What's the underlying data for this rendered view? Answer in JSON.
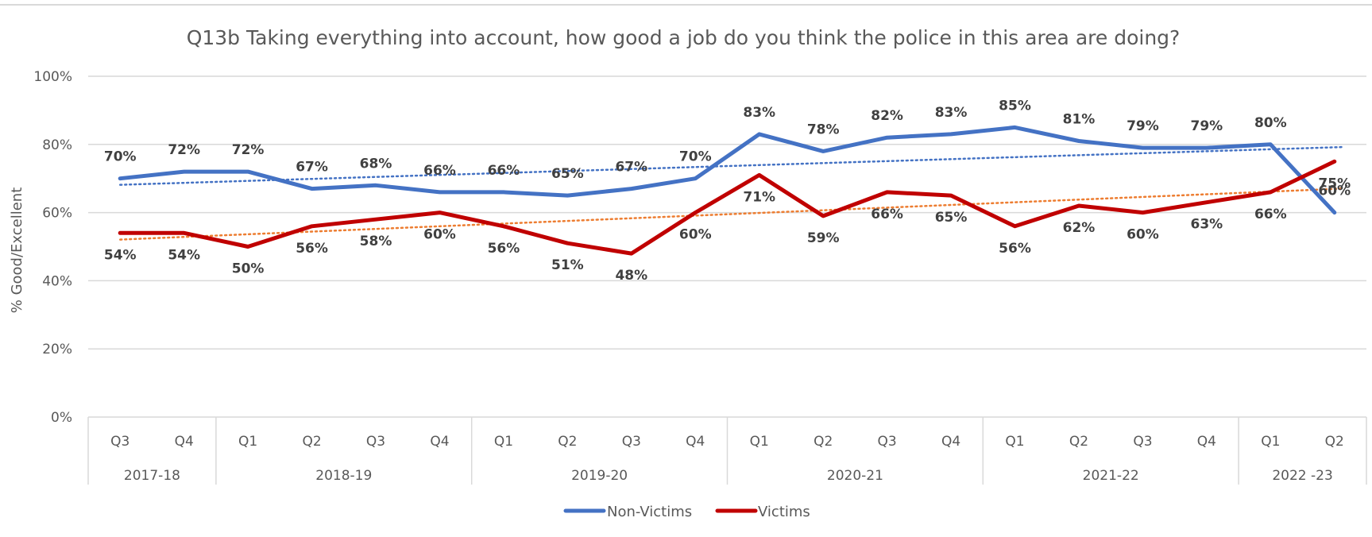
{
  "chart_data": {
    "type": "line",
    "title": "Q13b Taking everything into account, how good a job do you think the police in this area are doing?",
    "ylabel": "% Good/Excellent",
    "xlabel": "",
    "ylim": [
      0,
      100
    ],
    "yticks": [
      "0%",
      "20%",
      "40%",
      "60%",
      "80%",
      "100%"
    ],
    "ytick_values": [
      0,
      20,
      40,
      60,
      80,
      100
    ],
    "categories": [
      "Q3",
      "Q4",
      "Q1",
      "Q2",
      "Q3",
      "Q4",
      "Q1",
      "Q2",
      "Q3",
      "Q4",
      "Q1",
      "Q2",
      "Q3",
      "Q4",
      "Q1",
      "Q2",
      "Q3",
      "Q4",
      "Q1",
      "Q2"
    ],
    "groups": [
      {
        "label": "2017-18",
        "count": 2
      },
      {
        "label": "2018-19",
        "count": 4
      },
      {
        "label": "2019-20",
        "count": 4
      },
      {
        "label": "2020-21",
        "count": 4
      },
      {
        "label": "2021-22",
        "count": 4
      },
      {
        "label": "2022 -23",
        "count": 2
      }
    ],
    "series": [
      {
        "name": "Non-Victims",
        "color": "#4472C4",
        "values": [
          70,
          72,
          72,
          67,
          68,
          66,
          66,
          65,
          67,
          70,
          83,
          78,
          82,
          83,
          85,
          81,
          79,
          79,
          80,
          60
        ],
        "labels": [
          "70%",
          "72%",
          "72%",
          "67%",
          "68%",
          "66%",
          "66%",
          "65%",
          "67%",
          "70%",
          "83%",
          "78%",
          "82%",
          "83%",
          "85%",
          "81%",
          "79%",
          "79%",
          "80%",
          "60%"
        ],
        "label_position": "above",
        "trendline": {
          "type": "linear",
          "color": "#4472C4",
          "style": "dotted"
        }
      },
      {
        "name": "Victims",
        "color": "#C00000",
        "values": [
          54,
          54,
          50,
          56,
          58,
          60,
          56,
          51,
          48,
          60,
          71,
          59,
          66,
          65,
          56,
          62,
          60,
          63,
          66,
          75
        ],
        "labels": [
          "54%",
          "54%",
          "50%",
          "56%",
          "58%",
          "60%",
          "56%",
          "51%",
          "48%",
          "60%",
          "71%",
          "59%",
          "66%",
          "65%",
          "56%",
          "62%",
          "60%",
          "63%",
          "66%",
          "75%"
        ],
        "label_position": "below",
        "trendline": {
          "type": "linear",
          "color": "#ED7D31",
          "style": "dotted"
        }
      }
    ],
    "grid": true,
    "legend": "bottom-center"
  }
}
